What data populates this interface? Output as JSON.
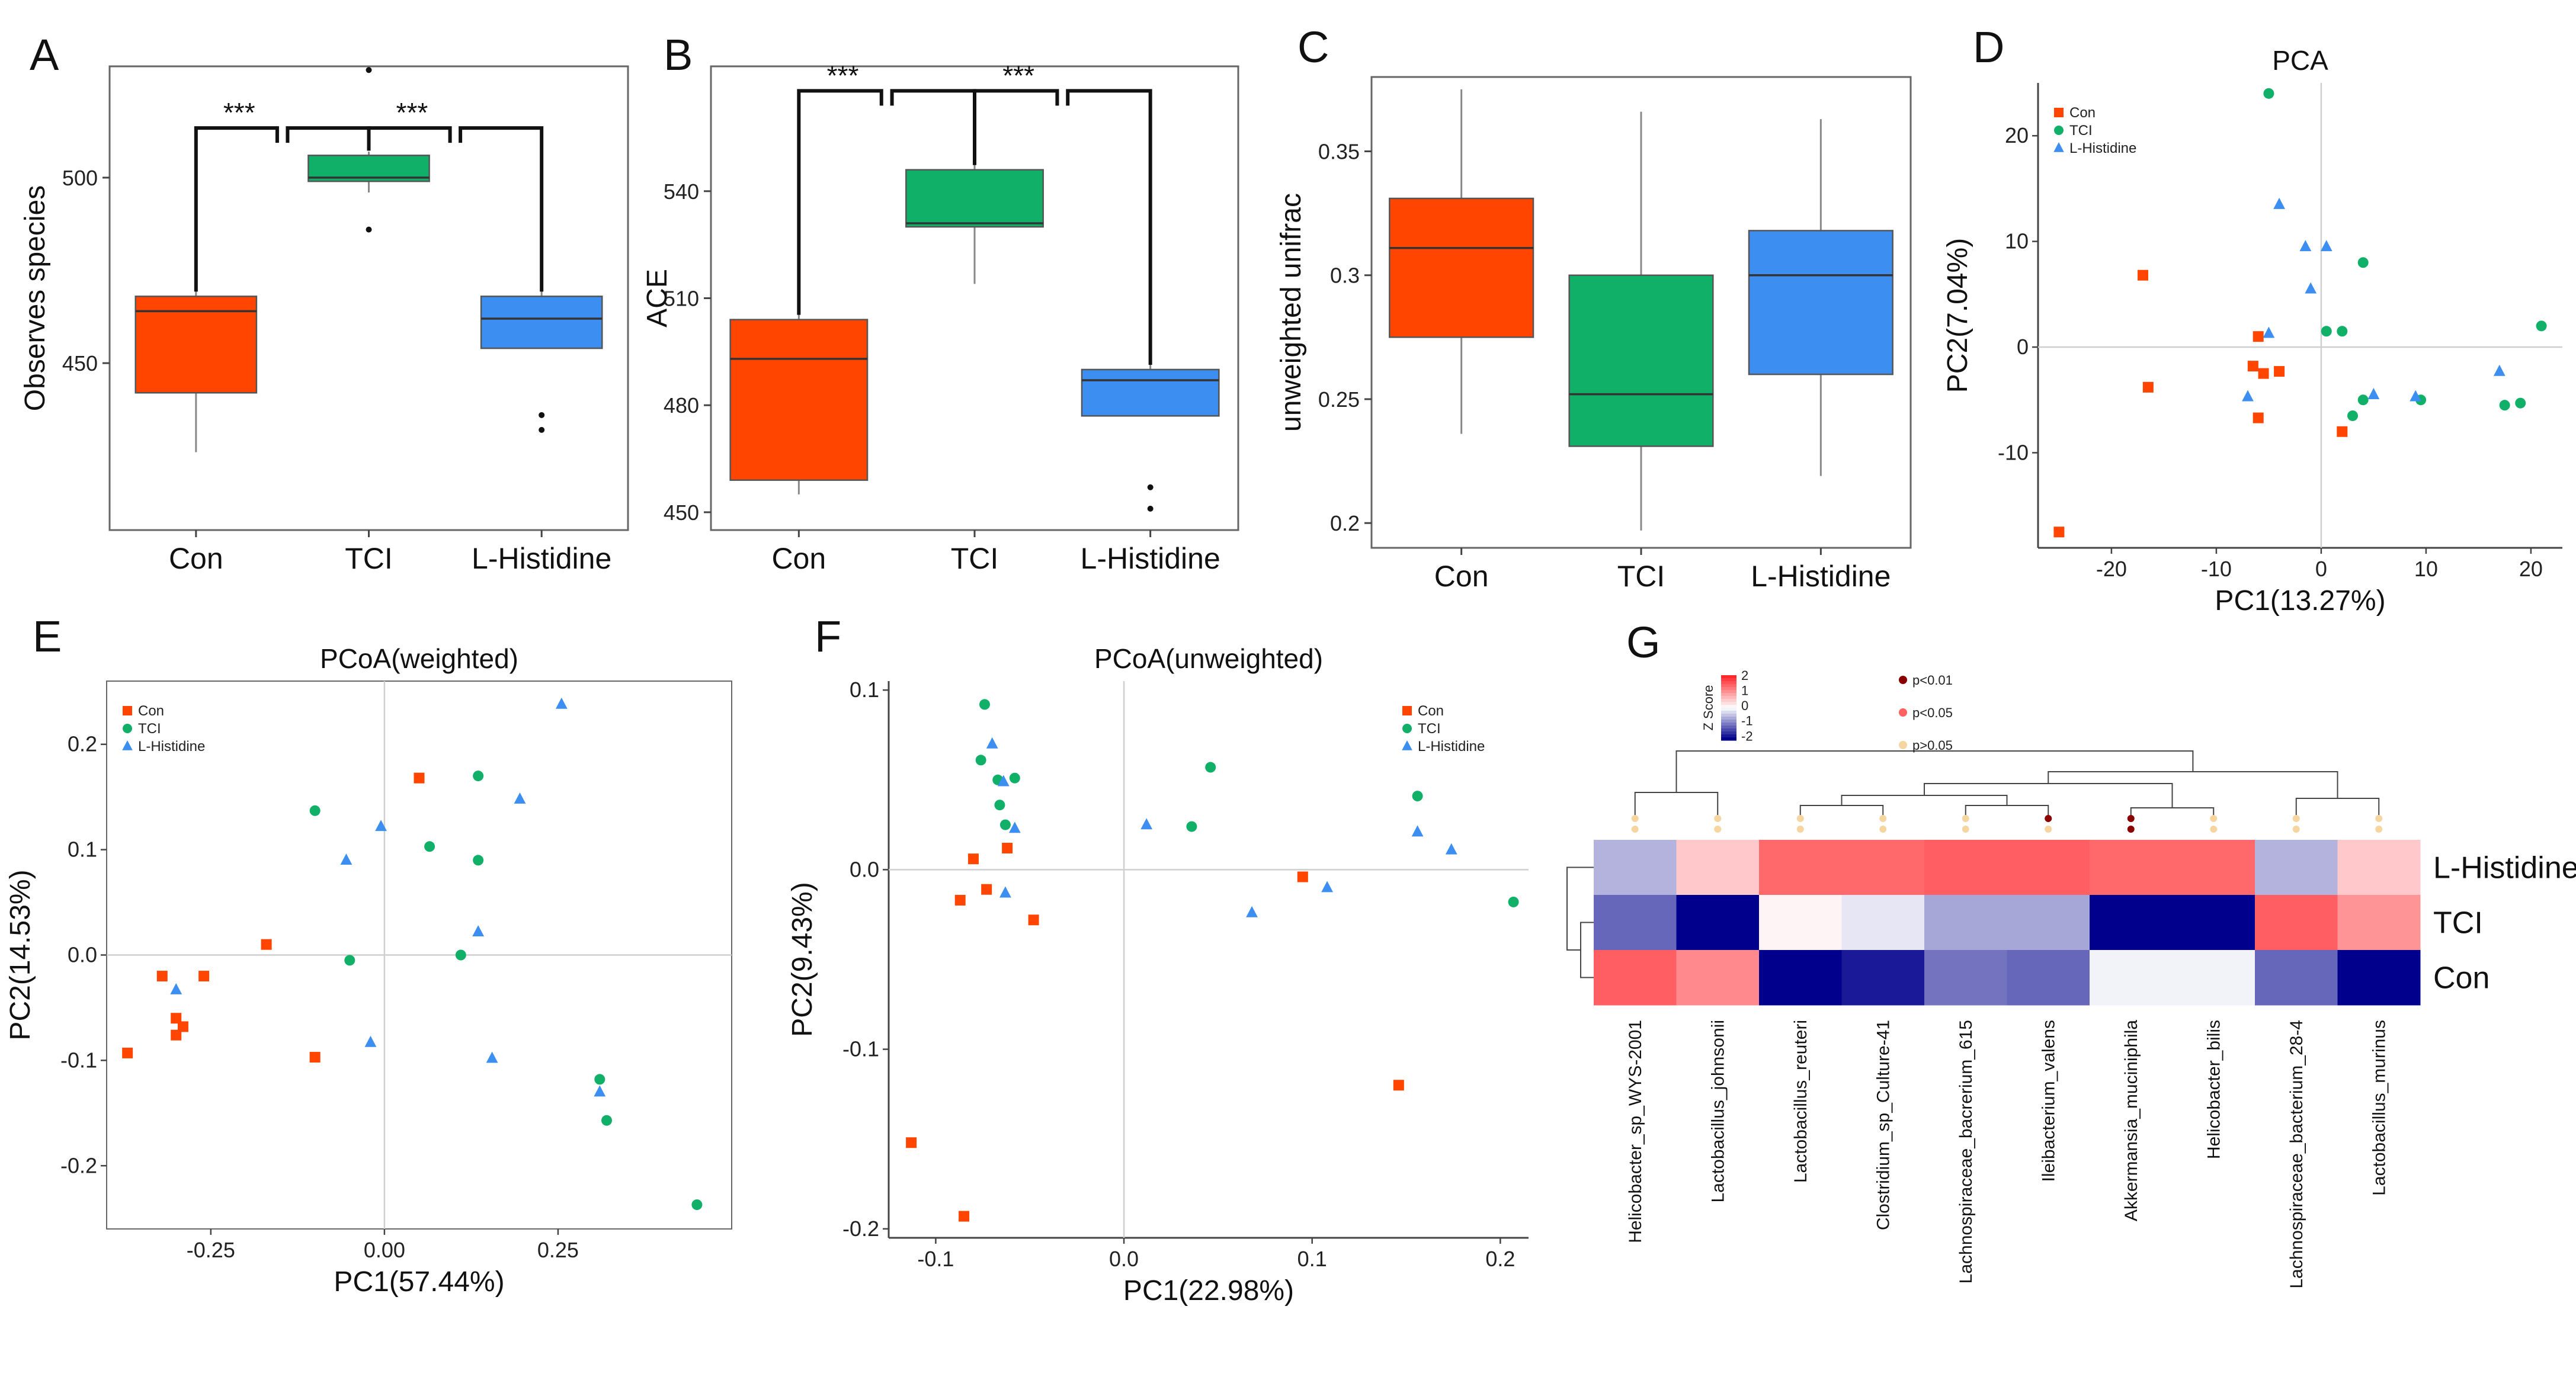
{
  "chart_data": [
    {
      "panel": "A",
      "type": "box",
      "title": "",
      "xlabel": "",
      "ylabel": "Observes species",
      "ylim": [
        405,
        530
      ],
      "yticks": [
        450,
        500
      ],
      "categories": [
        "Con",
        "TCI",
        "L-Histidine"
      ],
      "boxes": [
        {
          "name": "Con",
          "min": 426,
          "q1": 442,
          "median": 464,
          "q3": 468,
          "max": 483,
          "outliers": [],
          "color": "#ff4500"
        },
        {
          "name": "TCI",
          "min": 496,
          "q1": 499,
          "median": 500,
          "q3": 506,
          "max": 507,
          "outliers": [
            529,
            486
          ],
          "color": "#10b068"
        },
        {
          "name": "L-Histidine",
          "min": 454,
          "q1": 454,
          "median": 462,
          "q3": 468,
          "max": 477,
          "outliers": [
            436,
            432
          ],
          "color": "#3c8ff0"
        }
      ],
      "significance": [
        {
          "from": "Con",
          "to": "TCI",
          "label": "***"
        },
        {
          "from": "TCI",
          "to": "L-Histidine",
          "label": "***"
        }
      ]
    },
    {
      "panel": "B",
      "type": "box",
      "title": "",
      "xlabel": "",
      "ylabel": "ACE",
      "ylim": [
        445,
        575
      ],
      "yticks": [
        450,
        480,
        510,
        540
      ],
      "categories": [
        "Con",
        "TCI",
        "L-Histidine"
      ],
      "boxes": [
        {
          "name": "Con",
          "min": 455,
          "q1": 459,
          "median": 493,
          "q3": 504,
          "max": 511,
          "outliers": [],
          "color": "#ff4500"
        },
        {
          "name": "TCI",
          "min": 514,
          "q1": 530,
          "median": 531,
          "q3": 546,
          "max": 559,
          "outliers": [],
          "color": "#10b068"
        },
        {
          "name": "L-Histidine",
          "min": 477,
          "q1": 477,
          "median": 487,
          "q3": 490,
          "max": 499,
          "outliers": [
            457,
            451
          ],
          "color": "#3c8ff0"
        }
      ],
      "significance": [
        {
          "from": "Con",
          "to": "TCI",
          "label": "***"
        },
        {
          "from": "TCI",
          "to": "L-Histidine",
          "label": "***"
        }
      ]
    },
    {
      "panel": "C",
      "type": "box",
      "title": "",
      "xlabel": "",
      "ylabel": "unweighted unifrac",
      "ylim": [
        0.19,
        0.38
      ],
      "yticks": [
        0.2,
        0.25,
        0.3,
        0.35
      ],
      "categories": [
        "Con",
        "TCI",
        "L-Histidine"
      ],
      "boxes": [
        {
          "name": "Con",
          "min": 0.236,
          "q1": 0.275,
          "median": 0.311,
          "q3": 0.331,
          "max": 0.375,
          "outliers": [],
          "color": "#ff4500"
        },
        {
          "name": "TCI",
          "min": 0.197,
          "q1": 0.231,
          "median": 0.252,
          "q3": 0.3,
          "max": 0.366,
          "outliers": [],
          "color": "#10b068"
        },
        {
          "name": "L-Histidine",
          "min": 0.219,
          "q1": 0.26,
          "median": 0.3,
          "q3": 0.318,
          "max": 0.363,
          "outliers": [],
          "color": "#3c8ff0"
        }
      ],
      "significance": []
    },
    {
      "panel": "D",
      "type": "scatter",
      "title": "PCA",
      "xlabel": "PC1(13.27%)",
      "ylabel": "PC2(7.04%)",
      "xlim": [
        -27,
        23
      ],
      "ylim": [
        -19,
        25
      ],
      "xticks": [
        -20,
        -10,
        0,
        10,
        20
      ],
      "yticks": [
        -10,
        0,
        10,
        20
      ],
      "legend_position": "top-left",
      "series": [
        {
          "name": "Con",
          "marker": "square",
          "color": "#ff4500",
          "x": [
            -17,
            -16.5,
            -6,
            -6.5,
            -5.5,
            -4,
            -6,
            2,
            -25
          ],
          "y": [
            6.8,
            -3.8,
            1,
            -1.8,
            -2.5,
            -2.3,
            -6.7,
            -8,
            -17.5
          ]
        },
        {
          "name": "TCI",
          "marker": "circle",
          "color": "#10b068",
          "x": [
            -5,
            4,
            0.5,
            2,
            3,
            4,
            17.5,
            19,
            21,
            9.5
          ],
          "y": [
            24,
            8,
            1.5,
            1.5,
            -6.5,
            -5,
            -5.5,
            -5.3,
            2,
            -5
          ]
        },
        {
          "name": "L-Histidine",
          "marker": "triangle",
          "color": "#3c8ff0",
          "x": [
            -4,
            -1.5,
            0.5,
            -1,
            -5,
            -7,
            5,
            9,
            17
          ],
          "y": [
            13.5,
            9.5,
            9.5,
            5.5,
            1.3,
            -4.7,
            -4.5,
            -4.7,
            -2.3
          ]
        }
      ]
    },
    {
      "panel": "E",
      "type": "scatter",
      "title": "PCoA(weighted)",
      "xlabel": "PC1(57.44%)",
      "ylabel": "PC2(14.53%)",
      "xlim": [
        -0.4,
        0.5
      ],
      "ylim": [
        -0.26,
        0.26
      ],
      "xticks": [
        -0.25,
        0.0,
        0.25
      ],
      "xtick_labels": [
        "-0.25",
        "0.00",
        "0.25"
      ],
      "yticks": [
        -0.2,
        -0.1,
        0.0,
        0.1,
        0.2
      ],
      "ytick_labels": [
        "-0.2",
        "-0.1",
        "0.0",
        "0.1",
        "0.2"
      ],
      "legend_position": "top-left",
      "series": [
        {
          "name": "Con",
          "marker": "square",
          "color": "#ff4500",
          "x": [
            0.05,
            -0.17,
            -0.32,
            -0.26,
            -0.3,
            -0.29,
            -0.3,
            -0.37,
            -0.1
          ],
          "y": [
            0.168,
            0.01,
            -0.02,
            -0.02,
            -0.06,
            -0.068,
            -0.076,
            -0.093,
            -0.097
          ]
        },
        {
          "name": "TCI",
          "marker": "circle",
          "color": "#10b068",
          "x": [
            -0.1,
            0.065,
            0.135,
            0.135,
            -0.05,
            0.11,
            0.31,
            0.32,
            0.45
          ],
          "y": [
            0.137,
            0.103,
            0.17,
            0.09,
            -0.005,
            0.0,
            -0.118,
            -0.157,
            -0.237
          ]
        },
        {
          "name": "L-Histidine",
          "marker": "triangle",
          "color": "#3c8ff0",
          "x": [
            0.255,
            0.195,
            -0.005,
            -0.055,
            0.135,
            -0.3,
            -0.02,
            0.155,
            0.31
          ],
          "y": [
            0.238,
            0.148,
            0.122,
            0.09,
            0.022,
            -0.033,
            -0.083,
            -0.098,
            -0.13
          ]
        }
      ]
    },
    {
      "panel": "F",
      "type": "scatter",
      "title": "PCoA(unweighted)",
      "xlabel": "PC1(22.98%)",
      "ylabel": "PC2(9.43%)",
      "xlim": [
        -0.125,
        0.215
      ],
      "ylim": [
        -0.205,
        0.105
      ],
      "xticks": [
        -0.1,
        0.0,
        0.1,
        0.2
      ],
      "xtick_labels": [
        "-0.1",
        "0.0",
        "0.1",
        "0.2"
      ],
      "yticks": [
        -0.2,
        -0.1,
        0.0,
        0.1
      ],
      "ytick_labels": [
        "-0.2",
        "-0.1",
        "0.0",
        "0.1"
      ],
      "legend_position": "top-right",
      "series": [
        {
          "name": "Con",
          "marker": "square",
          "color": "#ff4500",
          "x": [
            -0.08,
            -0.062,
            -0.087,
            -0.073,
            -0.048,
            0.095,
            0.146,
            -0.113,
            -0.085
          ],
          "y": [
            0.006,
            0.012,
            -0.017,
            -0.011,
            -0.028,
            -0.004,
            -0.12,
            -0.152,
            -0.193
          ]
        },
        {
          "name": "TCI",
          "marker": "circle",
          "color": "#10b068",
          "x": [
            -0.074,
            -0.076,
            -0.058,
            -0.066,
            -0.063,
            -0.067,
            0.046,
            0.036,
            0.156,
            0.207
          ],
          "y": [
            0.092,
            0.061,
            0.051,
            0.036,
            0.025,
            0.05,
            0.057,
            0.024,
            0.041,
            -0.018
          ]
        },
        {
          "name": "L-Histidine",
          "marker": "triangle",
          "color": "#3c8ff0",
          "x": [
            -0.07,
            -0.064,
            -0.058,
            0.012,
            -0.063,
            0.068,
            0.108,
            0.156,
            0.174
          ],
          "y": [
            0.07,
            0.049,
            0.023,
            0.025,
            -0.013,
            -0.024,
            -0.01,
            0.021,
            0.011
          ]
        }
      ]
    },
    {
      "panel": "G",
      "type": "heatmap",
      "title": "",
      "legend_title": "Z Score",
      "legend_ticks": [
        "2",
        "1",
        "0",
        "-1",
        "-2"
      ],
      "pvalue_legend": [
        "p<0.01",
        "p<0.05",
        "p>0.05"
      ],
      "rows": [
        "L-Histidine",
        "TCI",
        "Con"
      ],
      "columns": [
        "Helicobacter_sp_WYS-2001",
        "Lactobacillus_johnsonii",
        "Lactobacillus_reuteri",
        "Clostridium_sp_Culture-41",
        "Lachnospiraceae_bacrerium_615",
        "Ileibacterium_valens",
        "Akkermansia_muciniphila",
        "Helicobacter_bilis",
        "Lachnospiraceae_bacterium_28-4",
        "Lactobacillus_murinus"
      ],
      "values": [
        [
          -0.6,
          0.5,
          1.4,
          1.4,
          1.5,
          1.5,
          1.4,
          1.4,
          -0.6,
          0.5
        ],
        [
          -1.2,
          -2.0,
          0.1,
          -0.2,
          -0.7,
          -0.7,
          -2.0,
          -2.0,
          1.5,
          1.0
        ],
        [
          1.5,
          1.1,
          -2.0,
          -1.8,
          -1.1,
          -1.2,
          -0.1,
          -0.1,
          -1.2,
          -2.0
        ]
      ],
      "column_significance": [
        "p>0.05",
        "p>0.05",
        "p>0.05",
        "p>0.05",
        "p>0.05",
        "p<0.01",
        "p<0.01",
        "p>0.05",
        "p>0.05",
        "p>0.05"
      ]
    }
  ],
  "panel_labels": [
    "A",
    "B",
    "C",
    "D",
    "E",
    "F",
    "G"
  ],
  "colors": {
    "con": "#ff4500",
    "tci": "#10b068",
    "histidine": "#3c8ff0"
  }
}
